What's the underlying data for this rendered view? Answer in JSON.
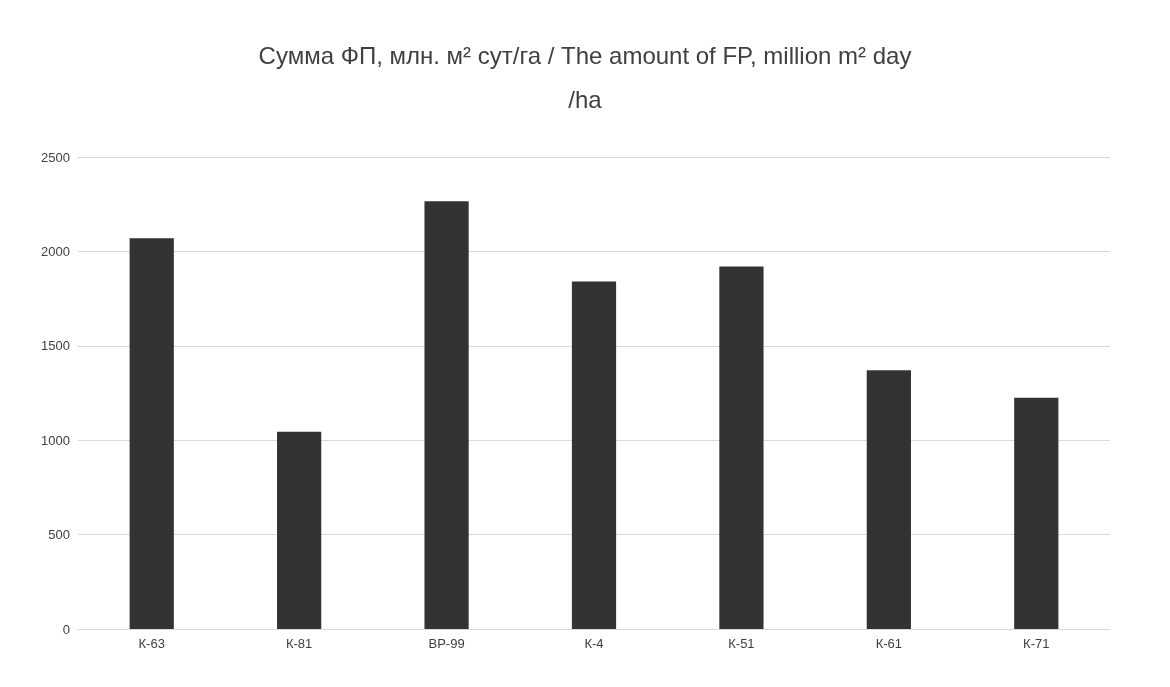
{
  "chart_data": {
    "type": "bar",
    "title": "Сумма ФП, млн. м² сут/га / The amount of FP, million m² day/ha",
    "categories": [
      "К-63",
      "К-81",
      "ВР-99",
      "К-4",
      "К-51",
      "К-61",
      "К-71"
    ],
    "values": [
      2070,
      1045,
      2265,
      1840,
      1920,
      1370,
      1225
    ],
    "color": "#333333",
    "ylim": [
      0,
      2500
    ],
    "yticks": [
      0,
      500,
      1000,
      1500,
      2000,
      2500
    ],
    "grid": "y"
  }
}
